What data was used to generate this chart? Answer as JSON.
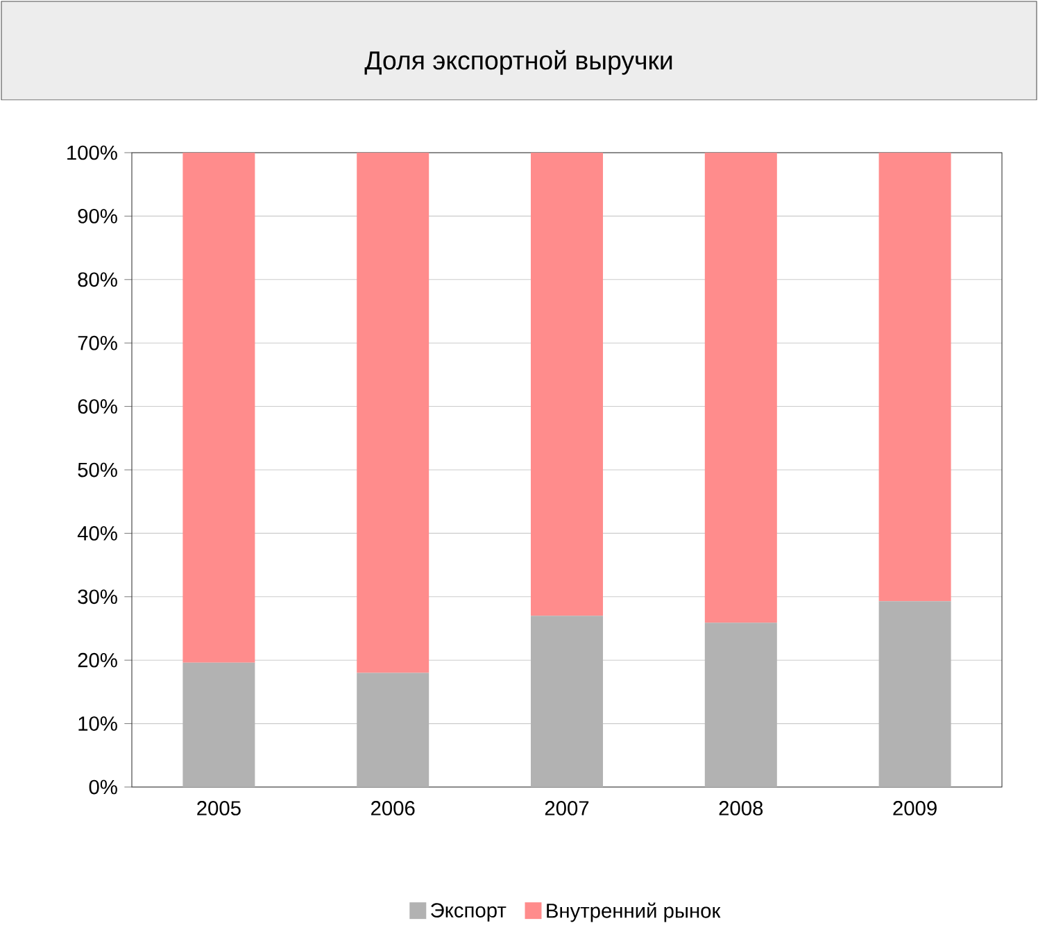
{
  "chart_data": {
    "type": "bar",
    "stacked": true,
    "title": "Доля экспортной выручки",
    "categories": [
      "2005",
      "2006",
      "2007",
      "2008",
      "2009"
    ],
    "series": [
      {
        "name": "Экспорт",
        "color": "#b2b2b2",
        "values": [
          19.6,
          18.0,
          27.0,
          25.9,
          29.3
        ]
      },
      {
        "name": "Внутренний рынок",
        "color": "#ff8c8c",
        "values": [
          80.4,
          82.0,
          73.0,
          74.1,
          70.7
        ]
      }
    ],
    "ylim": [
      0,
      100
    ],
    "yticks": [
      {
        "value": 0,
        "label": "0%"
      },
      {
        "value": 10,
        "label": "10%"
      },
      {
        "value": 20,
        "label": "20%"
      },
      {
        "value": 30,
        "label": "30%"
      },
      {
        "value": 40,
        "label": "40%"
      },
      {
        "value": 50,
        "label": "50%"
      },
      {
        "value": 60,
        "label": "60%"
      },
      {
        "value": 70,
        "label": "70%"
      },
      {
        "value": 80,
        "label": "80%"
      },
      {
        "value": 90,
        "label": "90%"
      },
      {
        "value": 100,
        "label": "100%"
      }
    ],
    "grid": "y",
    "legend": "bottom"
  }
}
